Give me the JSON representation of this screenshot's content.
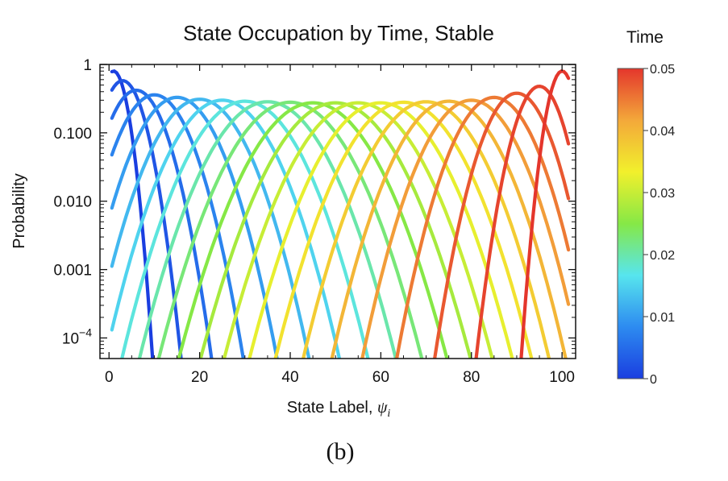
{
  "chart_data": {
    "type": "line",
    "title": "State Occupation by Time, Stable",
    "xlabel": "State Label, ",
    "xlabel_symbol": "ψ",
    "xlabel_subscript": "i",
    "ylabel": "Probability",
    "xlim": [
      -2,
      103
    ],
    "ylim": [
      5e-05,
      1
    ],
    "yscale": "log",
    "x_ticks": [
      "0",
      "20",
      "40",
      "60",
      "80",
      "100"
    ],
    "y_ticks": [
      "1",
      "0.100",
      "0.010",
      "0.001",
      "10^-4"
    ],
    "colorbar": {
      "title": "Time",
      "range": [
        0,
        0.05
      ],
      "tick_labels": [
        "0",
        "0.01",
        "0.02",
        "0.03",
        "0.04",
        "0.05"
      ],
      "colors": [
        "#1a3ee0",
        "#2d8bf0",
        "#57e5ee",
        "#86e846",
        "#f2f02c",
        "#f3a83a",
        "#e4362c"
      ]
    },
    "series_description": "Each curve is the state-occupation probability distribution at one time; peak position moves from state 0 to state 100 as time increases from 0 to 0.05.",
    "series": [
      {
        "time": 0.0,
        "peak_x": 1,
        "peak_y": 0.8,
        "spread": 4.2
      },
      {
        "time": 0.0025,
        "peak_x": 3,
        "peak_y": 0.58,
        "spread": 6.4
      },
      {
        "time": 0.005,
        "peak_x": 6,
        "peak_y": 0.42,
        "spread": 8.4
      },
      {
        "time": 0.0075,
        "peak_x": 10,
        "peak_y": 0.36,
        "spread": 10.0
      },
      {
        "time": 0.01,
        "peak_x": 15,
        "peak_y": 0.33,
        "spread": 11.3
      },
      {
        "time": 0.0125,
        "peak_x": 20,
        "peak_y": 0.31,
        "spread": 12.4
      },
      {
        "time": 0.015,
        "peak_x": 25,
        "peak_y": 0.3,
        "spread": 13.3
      },
      {
        "time": 0.0175,
        "peak_x": 30,
        "peak_y": 0.29,
        "spread": 14.0
      },
      {
        "time": 0.02,
        "peak_x": 35,
        "peak_y": 0.285,
        "spread": 14.6
      },
      {
        "time": 0.0225,
        "peak_x": 40,
        "peak_y": 0.28,
        "spread": 15.0
      },
      {
        "time": 0.025,
        "peak_x": 45,
        "peak_y": 0.275,
        "spread": 15.3
      },
      {
        "time": 0.0275,
        "peak_x": 50,
        "peak_y": 0.275,
        "spread": 15.4
      },
      {
        "time": 0.03,
        "peak_x": 55,
        "peak_y": 0.275,
        "spread": 15.3
      },
      {
        "time": 0.0325,
        "peak_x": 60,
        "peak_y": 0.275,
        "spread": 15.0
      },
      {
        "time": 0.035,
        "peak_x": 65,
        "peak_y": 0.28,
        "spread": 14.6
      },
      {
        "time": 0.0375,
        "peak_x": 70,
        "peak_y": 0.285,
        "spread": 14.0
      },
      {
        "time": 0.04,
        "peak_x": 75,
        "peak_y": 0.29,
        "spread": 13.3
      },
      {
        "time": 0.0425,
        "peak_x": 80,
        "peak_y": 0.3,
        "spread": 12.4
      },
      {
        "time": 0.045,
        "peak_x": 85,
        "peak_y": 0.33,
        "spread": 11.0
      },
      {
        "time": 0.0475,
        "peak_x": 90,
        "peak_y": 0.38,
        "spread": 9.2
      },
      {
        "time": 0.049,
        "peak_x": 95,
        "peak_y": 0.48,
        "spread": 7.0
      },
      {
        "time": 0.05,
        "peak_x": 100,
        "peak_y": 0.8,
        "spread": 4.4
      }
    ]
  },
  "caption": "(b)"
}
